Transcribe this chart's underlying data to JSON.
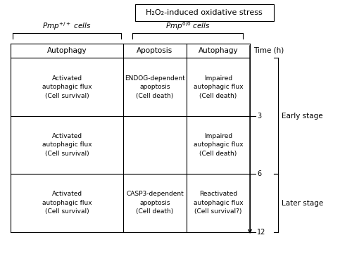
{
  "title": "H₂O₂-induced oxidative stress",
  "prnp_pos_label": "$Pmp^{+/+}$ cells",
  "prnp_neg_label": "$Pmp^{0/0}$ cells",
  "col_headers": [
    "Autophagy",
    "Apoptosis",
    "Autophagy",
    "Time (h)"
  ],
  "time_labels": [
    "3",
    "6",
    "12"
  ],
  "stage_labels": [
    "Early stage",
    "Later stage"
  ],
  "cell_contents": [
    [
      "Activated\nautophagic flux\n(Cell survival)",
      "ENDOG-dependent\napoptosis\n(Cell death)",
      "Impaired\nautophagic flux\n(Cell death)"
    ],
    [
      "Activated\nautophagic flux\n(Cell survival)",
      "",
      "Impaired\nautophagic flux\n(Cell death)"
    ],
    [
      "Activated\nautophagic flux\n(Cell survival)",
      "CASP3-dependent\napoptosis\n(Cell death)",
      "Reactivated\nautophagic flux\n(Cell survival?)"
    ]
  ],
  "fig_width": 5.0,
  "fig_height": 3.78,
  "bg_color": "#ffffff",
  "text_color": "#000000",
  "line_color": "#000000",
  "font_size_title": 8,
  "font_size_header": 7.5,
  "font_size_cell": 6.5,
  "font_size_time": 7,
  "font_size_stage": 7.5
}
